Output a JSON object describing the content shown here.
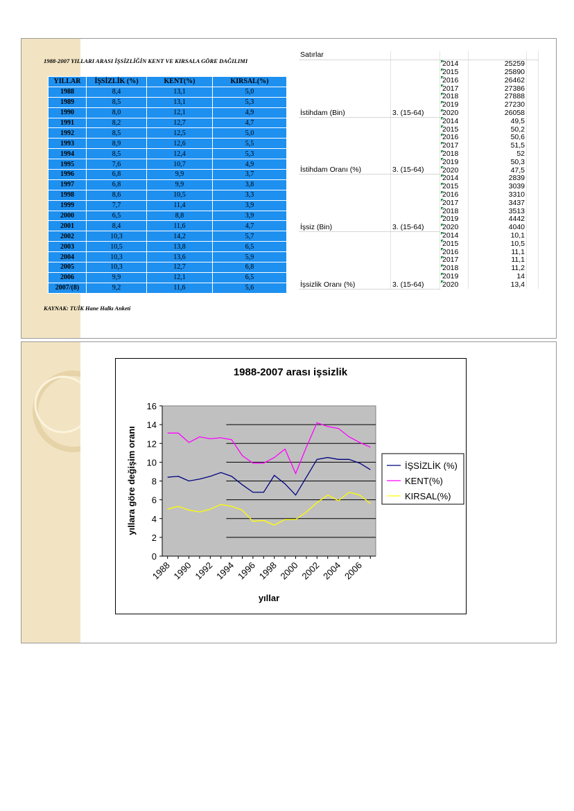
{
  "left_table": {
    "title": "1988-2007 YILLARI ARASI İŞSİZLİĞİN KENT VE KIRSALA GÖRE DAĞILIMI",
    "headers": [
      "YILLAR",
      "İŞSİZLİK (%)",
      "KENT(%)",
      "KIRSAL(%)"
    ],
    "rows": [
      [
        "1988",
        "8,4",
        "13,1",
        "5,0"
      ],
      [
        "1989",
        "8,5",
        "13,1",
        "5,3"
      ],
      [
        "1990",
        "8,0",
        "12,1",
        "4,9"
      ],
      [
        "1991",
        "8,2",
        "12,7",
        "4,7"
      ],
      [
        "1992",
        "8,5",
        "12,5",
        "5,0"
      ],
      [
        "1993",
        "8,9",
        "12,6",
        "5,5"
      ],
      [
        "1994",
        "8,5",
        "12,4",
        "5,3"
      ],
      [
        "1995",
        "7,6",
        "10,7",
        "4,9"
      ],
      [
        "1996",
        "6,8",
        "9,9",
        "3,7"
      ],
      [
        "1997",
        "6,8",
        "9,9",
        "3,8"
      ],
      [
        "1998",
        "8,6",
        "10,5",
        "3,3"
      ],
      [
        "1999",
        "7,7",
        "11,4",
        "3,9"
      ],
      [
        "2000",
        "6,5",
        "8,8",
        "3,9"
      ],
      [
        "2001",
        "8,4",
        "11,6",
        "4,7"
      ],
      [
        "2002",
        "10,3",
        "14,2",
        "5,7"
      ],
      [
        "2003",
        "10,5",
        "13,8",
        "6,5"
      ],
      [
        "2004",
        "10,3",
        "13,6",
        "5,9"
      ],
      [
        "2005",
        "10,3",
        "12,7",
        "6,8"
      ],
      [
        "2006",
        "9,9",
        "12,1",
        "6,5"
      ],
      [
        "2007/(8)",
        "9,2",
        "11,6",
        "5,6"
      ]
    ],
    "source": "KAYNAK:  TUİK Hane Halkı Anketi"
  },
  "right_table": {
    "header": "Satırlar",
    "groups": [
      {
        "label": "İstihdam (Bin)",
        "age": "3. (15-64)",
        "rows": [
          [
            "2014",
            "25259"
          ],
          [
            "2015",
            "25890"
          ],
          [
            "2016",
            "26462"
          ],
          [
            "2017",
            "27386"
          ],
          [
            "2018",
            "27888"
          ],
          [
            "2019",
            "27230"
          ],
          [
            "2020",
            "26058"
          ]
        ]
      },
      {
        "label": "İstihdam Oranı (%)",
        "age": "3. (15-64)",
        "rows": [
          [
            "2014",
            "49,5"
          ],
          [
            "2015",
            "50,2"
          ],
          [
            "2016",
            "50,6"
          ],
          [
            "2017",
            "51,5"
          ],
          [
            "2018",
            "52"
          ],
          [
            "2019",
            "50,3"
          ],
          [
            "2020",
            "47,5"
          ]
        ]
      },
      {
        "label": "İşsiz (Bin)",
        "age": "3. (15-64)",
        "rows": [
          [
            "2014",
            "2839"
          ],
          [
            "2015",
            "3039"
          ],
          [
            "2016",
            "3310"
          ],
          [
            "2017",
            "3437"
          ],
          [
            "2018",
            "3513"
          ],
          [
            "2019",
            "4442"
          ],
          [
            "2020",
            "4040"
          ]
        ]
      },
      {
        "label": "İşsizlik Oranı (%)",
        "age": "3. (15-64)",
        "rows": [
          [
            "2014",
            "10,1"
          ],
          [
            "2015",
            "10,5"
          ],
          [
            "2016",
            "11,1"
          ],
          [
            "2017",
            "11,1"
          ],
          [
            "2018",
            "11,2"
          ],
          [
            "2019",
            "14"
          ],
          [
            "2020",
            "13,4"
          ]
        ]
      }
    ]
  },
  "chart_data": {
    "type": "line",
    "title": "1988-2007 arası işsizlik",
    "x_label": "yıllar",
    "y_label": "yıllara göre değişim oranı",
    "x": [
      1988,
      1989,
      1990,
      1991,
      1992,
      1993,
      1994,
      1995,
      1996,
      1997,
      1998,
      1999,
      2000,
      2001,
      2002,
      2003,
      2004,
      2005,
      2006,
      2007
    ],
    "series": [
      {
        "name": "İŞSİZLİK (%)",
        "color": "#000080",
        "values": [
          8.4,
          8.5,
          8.0,
          8.2,
          8.5,
          8.9,
          8.5,
          7.6,
          6.8,
          6.8,
          8.6,
          7.7,
          6.5,
          8.4,
          10.3,
          10.5,
          10.3,
          10.3,
          9.9,
          9.2
        ]
      },
      {
        "name": "KENT(%)",
        "color": "#ff00ff",
        "values": [
          13.1,
          13.1,
          12.1,
          12.7,
          12.5,
          12.6,
          12.4,
          10.7,
          9.9,
          9.9,
          10.5,
          11.4,
          8.8,
          11.6,
          14.2,
          13.8,
          13.6,
          12.7,
          12.1,
          11.6
        ]
      },
      {
        "name": "KIRSAL(%)",
        "color": "#ffff00",
        "values": [
          5.0,
          5.3,
          4.9,
          4.7,
          5.0,
          5.5,
          5.3,
          4.9,
          3.7,
          3.8,
          3.3,
          3.9,
          3.9,
          4.7,
          5.7,
          6.5,
          5.9,
          6.8,
          6.5,
          5.6
        ]
      }
    ],
    "xlim": [
      1987.5,
      2007.5
    ],
    "xticks": [
      1988,
      1990,
      1992,
      1994,
      1996,
      1998,
      2000,
      2002,
      2004,
      2006
    ],
    "ylim": [
      0,
      16
    ],
    "yticks": [
      0,
      2,
      4,
      6,
      8,
      10,
      12,
      14,
      16
    ],
    "grid": true,
    "legend": "right"
  }
}
